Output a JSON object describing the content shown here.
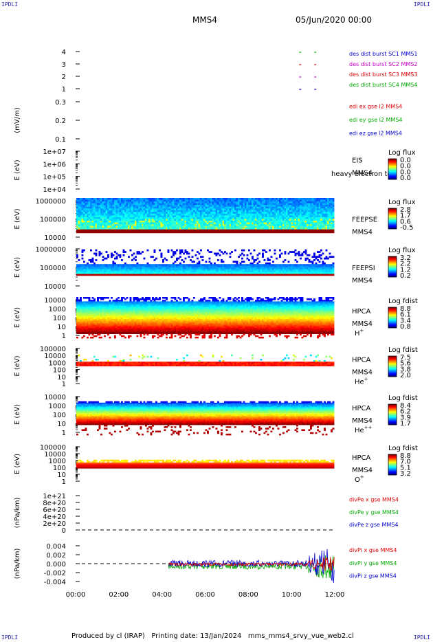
{
  "corners": {
    "tl": "IPDLI",
    "tr": "IPDLI",
    "bl": "IPDLI",
    "br": "IPDLI"
  },
  "header": {
    "spacecraft": "MMS4",
    "date": "05/Jun/2020 00:00"
  },
  "footer": {
    "text": "Produced by cl (IRAP)   Printing date: 13/Jan/2024   mms_mms4_srvy_vue_web2.cl"
  },
  "colors": {
    "mms1": "#0000cc",
    "mms2": "#cc00cc",
    "mms3": "#dd0000",
    "mms4": "#00aa00",
    "x": "#dd0000",
    "y": "#00aa00",
    "z": "#0000cc"
  },
  "chart_data": {
    "type": "stack",
    "x_ticks": [
      "00:00",
      "02:00",
      "04:00",
      "06:00",
      "08:00",
      "10:00",
      "12:00"
    ],
    "x_range_hours": [
      0,
      12
    ],
    "panels": [
      {
        "kind": "bursts",
        "yticks": [
          "4",
          "3",
          "2",
          "1"
        ],
        "legend": [
          {
            "text": "des dist burst SC1 MMS1",
            "color": "#0000cc"
          },
          {
            "text": "des dist burst SC2 MMS2",
            "color": "#cc00cc"
          },
          {
            "text": "des dist burst SC3 MMS3",
            "color": "#dd0000"
          },
          {
            "text": "des dist burst SC4 MMS4",
            "color": "#00aa00"
          }
        ],
        "marks_hours": [
          10.4,
          11.1
        ]
      },
      {
        "kind": "line",
        "ylabel": "(mV/m)",
        "yticks": [
          "0.3",
          "0.2",
          "0.1"
        ],
        "legend": [
          {
            "text": "edi ex gse l2 MMS4",
            "color": "#dd0000"
          },
          {
            "text": "edi ey gse l2 MMS4",
            "color": "#00aa00"
          },
          {
            "text": "edi ez gse l2 MMS4",
            "color": "#0000cc"
          }
        ]
      },
      {
        "kind": "spec_empty",
        "ylabel": "E (eV)",
        "yticks": [
          "1e+07",
          "1e+06",
          "1e+05",
          "1e+04"
        ],
        "instrument": "EIS",
        "sc": "MMS4",
        "overlay": "heavy electron to",
        "cbar_title": "Log flux",
        "cbar_ticks": [
          "0.0",
          "0.0",
          "0.0",
          "0.0"
        ]
      },
      {
        "kind": "spec",
        "ylabel": "E (eV)",
        "yticks": [
          "1000000",
          "100000",
          "10000"
        ],
        "instrument": "FEEPSE",
        "sc": "MMS4",
        "cbar_title": "Log flux",
        "cbar_ticks": [
          "2.8",
          "1.7",
          "0.6",
          "-0.5"
        ]
      },
      {
        "kind": "spec",
        "ylabel": "E (eV)",
        "yticks": [
          "1000000",
          "100000",
          "10000"
        ],
        "instrument": "FEEPSI",
        "sc": "MMS4",
        "cbar_title": "Log flux",
        "cbar_ticks": [
          "3.2",
          "2.2",
          "1.2",
          "0.2"
        ]
      },
      {
        "kind": "spec",
        "ylabel": "E (eV)",
        "yticks": [
          "10000",
          "1000",
          "100",
          "10",
          "1"
        ],
        "instrument": "HPCA",
        "sc": "MMS4",
        "species": "H",
        "charge": "+",
        "cbar_title": "Log fdist",
        "cbar_ticks": [
          "8.8",
          "6.1",
          "3.4",
          "0.8"
        ]
      },
      {
        "kind": "spec",
        "ylabel": "E (eV)",
        "yticks": [
          "100000",
          "10000",
          "1000",
          "100",
          "10",
          "1"
        ],
        "instrument": "HPCA",
        "sc": "MMS4",
        "species": "He",
        "charge": "+",
        "cbar_title": "Log fdist",
        "cbar_ticks": [
          "7.5",
          "5.6",
          "3.8",
          "2.0"
        ]
      },
      {
        "kind": "spec",
        "ylabel": "E (eV)",
        "yticks": [
          "10000",
          "1000",
          "100",
          "10",
          "1"
        ],
        "instrument": "HPCA",
        "sc": "MMS4",
        "species": "He",
        "charge": "++",
        "cbar_title": "Log fdist",
        "cbar_ticks": [
          "8.4",
          "6.2",
          "3.9",
          "1.7"
        ]
      },
      {
        "kind": "spec",
        "ylabel": "E (eV)",
        "yticks": [
          "100000",
          "10000",
          "1000",
          "100",
          "10",
          "1"
        ],
        "instrument": "HPCA",
        "sc": "MMS4",
        "species": "O",
        "charge": "+",
        "cbar_title": "Log fdist",
        "cbar_ticks": [
          "8.8",
          "7.0",
          "5.1",
          "3.2"
        ]
      },
      {
        "kind": "line",
        "ylabel": "(nPa/km)",
        "yticks": [
          "1e+21",
          "8e+20",
          "6e+20",
          "4e+20",
          "2e+20",
          "0"
        ],
        "legend": [
          {
            "text": "divPe x gse MMS4",
            "color": "#dd0000"
          },
          {
            "text": "divPe y gse MMS4",
            "color": "#00aa00"
          },
          {
            "text": "divPe z gse MMS4",
            "color": "#0000cc"
          }
        ]
      },
      {
        "kind": "line",
        "ylabel": "(nPa/km)",
        "yticks": [
          "0.004",
          "0.002",
          "0.000",
          "-0.002",
          "-0.004"
        ],
        "legend": [
          {
            "text": "divPi x gse MMS4",
            "color": "#dd0000"
          },
          {
            "text": "divPi y gse MMS4",
            "color": "#00aa00"
          },
          {
            "text": "divPi z gse MMS4",
            "color": "#0000cc"
          }
        ],
        "data_start_hours": 4.3
      }
    ]
  }
}
